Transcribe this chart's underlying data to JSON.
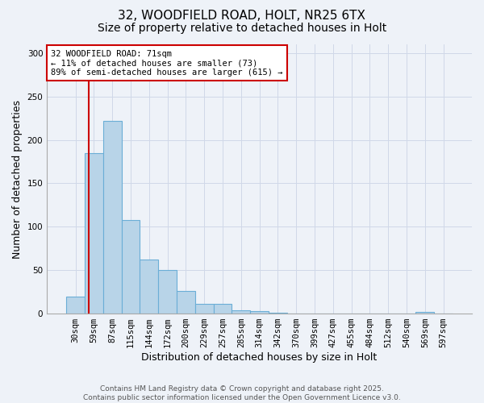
{
  "title_line1": "32, WOODFIELD ROAD, HOLT, NR25 6TX",
  "title_line2": "Size of property relative to detached houses in Holt",
  "xlabel": "Distribution of detached houses by size in Holt",
  "ylabel": "Number of detached properties",
  "categories": [
    "30sqm",
    "59sqm",
    "87sqm",
    "115sqm",
    "144sqm",
    "172sqm",
    "200sqm",
    "229sqm",
    "257sqm",
    "285sqm",
    "314sqm",
    "342sqm",
    "370sqm",
    "399sqm",
    "427sqm",
    "455sqm",
    "484sqm",
    "512sqm",
    "540sqm",
    "569sqm",
    "597sqm"
  ],
  "values": [
    20,
    185,
    222,
    108,
    62,
    50,
    26,
    11,
    11,
    4,
    3,
    1,
    0,
    0,
    0,
    0,
    0,
    0,
    0,
    2,
    0
  ],
  "bar_color": "#b8d4e8",
  "bar_edge_color": "#6baed6",
  "annotation_text": "32 WOODFIELD ROAD: 71sqm\n← 11% of detached houses are smaller (73)\n89% of semi-detached houses are larger (615) →",
  "annotation_box_color": "#ffffff",
  "annotation_box_edge_color": "#cc0000",
  "vline_x": 0.72,
  "vline_color": "#cc0000",
  "ylim": [
    0,
    310
  ],
  "yticks": [
    0,
    50,
    100,
    150,
    200,
    250,
    300
  ],
  "grid_color": "#d0d8e8",
  "background_color": "#eef2f8",
  "footer_text": "Contains HM Land Registry data © Crown copyright and database right 2025.\nContains public sector information licensed under the Open Government Licence v3.0.",
  "title_fontsize": 11,
  "subtitle_fontsize": 10,
  "axis_label_fontsize": 9,
  "tick_fontsize": 7.5,
  "annotation_fontsize": 7.5,
  "footer_fontsize": 6.5
}
